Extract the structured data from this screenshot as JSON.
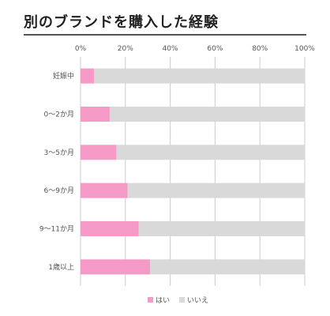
{
  "title": "別のブランドを購入した経験",
  "colors": {
    "yes": "#f59ac6",
    "no": "#d9d9d9",
    "grid": "#cccccc"
  },
  "chart_data": {
    "type": "bar",
    "orientation": "horizontal",
    "stacked": "percent",
    "categories": [
      "妊娠中",
      "0〜2か月",
      "3〜5か月",
      "6〜9か月",
      "9〜11か月",
      "1歳以上"
    ],
    "series": [
      {
        "name": "はい",
        "values": [
          6,
          13,
          16,
          21,
          26,
          31
        ]
      },
      {
        "name": "いいえ",
        "values": [
          94,
          87,
          84,
          79,
          74,
          69
        ]
      }
    ],
    "xlim": [
      0,
      100
    ],
    "xticks": [
      "0%",
      "20%",
      "40%",
      "60%",
      "80%",
      "100%"
    ],
    "legend": "bottom",
    "grid": true
  }
}
